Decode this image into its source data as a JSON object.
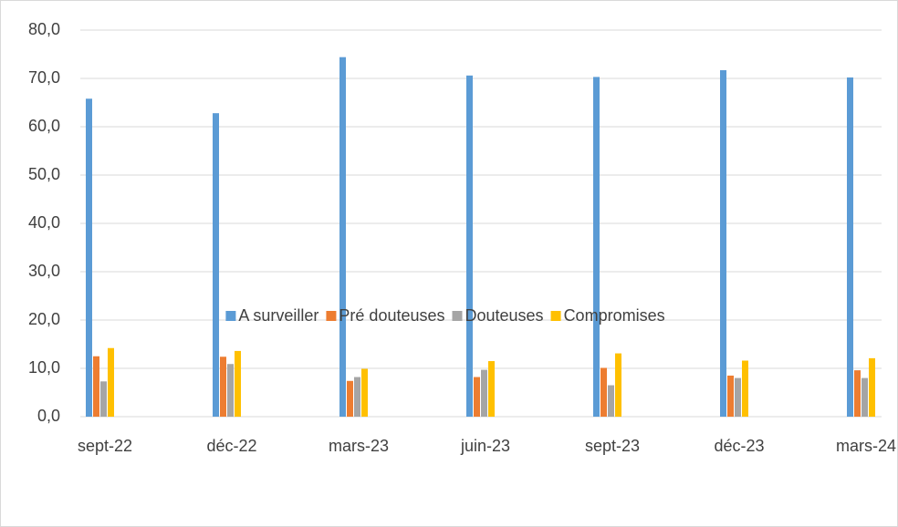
{
  "chart_data": {
    "type": "bar",
    "categories": [
      "sept-22",
      "déc-22",
      "mars-23",
      "juin-23",
      "sept-23",
      "déc-23",
      "mars-24"
    ],
    "series": [
      {
        "name": "A surveiller",
        "color": "#5b9bd5",
        "values": [
          65.8,
          62.8,
          74.4,
          70.6,
          70.3,
          71.7,
          70.2
        ]
      },
      {
        "name": "Pré douteuses",
        "color": "#ed7d31",
        "values": [
          12.5,
          12.4,
          7.4,
          8.2,
          10.1,
          8.5,
          9.6
        ]
      },
      {
        "name": "Douteuses",
        "color": "#a5a5a5",
        "values": [
          7.3,
          10.9,
          8.2,
          9.7,
          6.5,
          8.0,
          8.0
        ]
      },
      {
        "name": "Compromises",
        "color": "#ffc000",
        "values": [
          14.2,
          13.6,
          9.9,
          11.5,
          13.1,
          11.6,
          12.1
        ]
      }
    ],
    "ylim": [
      0,
      80
    ],
    "yticks": [
      {
        "value": 0,
        "label": "0,0"
      },
      {
        "value": 10,
        "label": "10,0"
      },
      {
        "value": 20,
        "label": "20,0"
      },
      {
        "value": 30,
        "label": "30,0"
      },
      {
        "value": 40,
        "label": "40,0"
      },
      {
        "value": 50,
        "label": "50,0"
      },
      {
        "value": 60,
        "label": "60,0"
      },
      {
        "value": 70,
        "label": "70,0"
      },
      {
        "value": 80,
        "label": "80,0"
      }
    ],
    "grid": true,
    "legend": "bottom"
  }
}
